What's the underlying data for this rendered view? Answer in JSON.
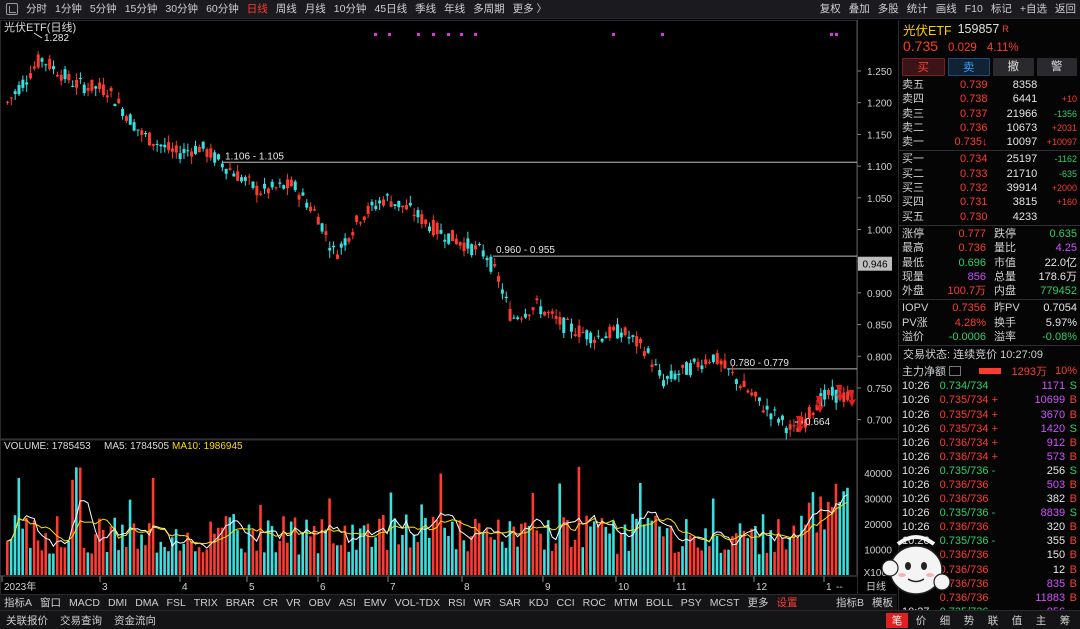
{
  "topbar": {
    "left_items": [
      "分时",
      "1分钟",
      "5分钟",
      "15分钟",
      "30分钟",
      "60分钟",
      "日线",
      "周线",
      "月线",
      "10分钟",
      "45日线",
      "季线",
      "年线",
      "多周期",
      "更多 〉"
    ],
    "active_index": 6,
    "right_items": [
      "复权",
      "叠加",
      "多股",
      "统计",
      "画线",
      "F10",
      "标记",
      "+自选",
      "返回"
    ]
  },
  "chart": {
    "title": "光伏ETF(日线)",
    "high_label": "1.282",
    "low_label": "0.664",
    "price_axis": [
      "1.250",
      "1.200",
      "1.150",
      "1.100",
      "1.050",
      "1.000",
      "0.950",
      "0.900",
      "0.850",
      "0.800",
      "0.750",
      "0.700"
    ],
    "current_marker": "0.946",
    "lines": [
      {
        "label": "1.106 - 1.105",
        "price": 1.106
      },
      {
        "label": "0.960 - 0.955",
        "price": 0.958
      },
      {
        "label": "0.780 - 0.779",
        "price": 0.78
      }
    ],
    "volume_legend": {
      "volume": "VOLUME: 1785453",
      "ma5": "MA5: 1784505",
      "ma10": "MA10: 1986945"
    },
    "volume_axis": [
      "40000",
      "30000",
      "20000",
      "10000"
    ],
    "volume_unit": "X100",
    "x_labels": [
      "2023年",
      "3",
      "4",
      "5",
      "6",
      "7",
      "8",
      "9",
      "10",
      "11",
      "12",
      "1"
    ],
    "period_btn": "日线",
    "more_btn": "--"
  },
  "bottom_tabs": {
    "left": [
      "指标A",
      "窗口",
      "MACD",
      "DMI",
      "DMA",
      "FSL",
      "TRIX",
      "BRAR",
      "CR",
      "VR",
      "OBV",
      "ASI",
      "EMV",
      "VOL-TDX",
      "RSI",
      "WR",
      "SAR",
      "KDJ",
      "CCI",
      "ROC",
      "MTM",
      "BOLL",
      "PSY",
      "MCST",
      "更多",
      "设置"
    ],
    "right": [
      "指标B",
      "模板"
    ]
  },
  "status_bar": {
    "left": [
      "关联报价",
      "交易查询",
      "资金流向"
    ],
    "right": [
      "笔",
      "价",
      "细",
      "势",
      "联",
      "值",
      "主",
      "筹"
    ],
    "active_index": 0
  },
  "quote": {
    "name": "光伏ETF",
    "code": "159857",
    "tag": "R",
    "price": "0.735",
    "change": "0.029",
    "pct": "4.11%",
    "btn_buy": "买",
    "btn_sell": "卖",
    "btn_cancel": "撤",
    "btn_alert": "警",
    "asks": [
      {
        "label": "卖五",
        "price": "0.739",
        "vol": "8358",
        "delta": ""
      },
      {
        "label": "卖四",
        "price": "0.738",
        "vol": "6441",
        "delta": "+10"
      },
      {
        "label": "卖三",
        "price": "0.737",
        "vol": "21966",
        "delta": "-1356"
      },
      {
        "label": "卖二",
        "price": "0.736",
        "vol": "10673",
        "delta": "+2031"
      },
      {
        "label": "卖一",
        "price": "0.735↓",
        "vol": "10097",
        "delta": "+10097"
      }
    ],
    "bids": [
      {
        "label": "买一",
        "price": "0.734",
        "vol": "25197",
        "delta": "-1162"
      },
      {
        "label": "买二",
        "price": "0.733",
        "vol": "21710",
        "delta": "-635"
      },
      {
        "label": "买三",
        "price": "0.732",
        "vol": "39914",
        "delta": "+2000"
      },
      {
        "label": "买四",
        "price": "0.731",
        "vol": "3815",
        "delta": "+160"
      },
      {
        "label": "买五",
        "price": "0.730",
        "vol": "4233",
        "delta": ""
      }
    ],
    "stats": [
      {
        "l1": "涨停",
        "v1": "0.777",
        "c1": "red",
        "l2": "跌停",
        "v2": "0.635",
        "c2": "green"
      },
      {
        "l1": "最高",
        "v1": "0.736",
        "c1": "red",
        "l2": "量比",
        "v2": "4.25",
        "c2": "mag"
      },
      {
        "l1": "最低",
        "v1": "0.696",
        "c1": "green",
        "l2": "市值",
        "v2": "22.0亿",
        "c2": "white"
      },
      {
        "l1": "现量",
        "v1": "856",
        "c1": "mag",
        "l2": "总量",
        "v2": "178.6万",
        "c2": "white"
      },
      {
        "l1": "外盘",
        "v1": "100.7万",
        "c1": "red",
        "l2": "内盘",
        "v2": "779452",
        "c2": "green"
      }
    ],
    "stats2": [
      {
        "l1": "IOPV",
        "v1": "0.7356",
        "c1": "red",
        "l2": "昨PV",
        "v2": "0.7054",
        "c2": "white"
      },
      {
        "l1": "PV涨",
        "v1": "4.28%",
        "c1": "red",
        "l2": "换手",
        "v2": "5.97%",
        "c2": "white"
      },
      {
        "l1": "溢价",
        "v1": "-0.0006",
        "c1": "green",
        "l2": "溢率",
        "v2": "-0.08%",
        "c2": "green"
      }
    ],
    "trade_state": "交易状态: 连续竞价 10:27:09",
    "main_flow": {
      "label": "主力净额",
      "value": "1293万",
      "pct": "10%"
    },
    "ticks": [
      {
        "t": "10:26",
        "p": "0.734/734",
        "pc": "green",
        "v": "1171",
        "vc": "mag",
        "s": "S",
        "sc": "green"
      },
      {
        "t": "10:26",
        "p": "0.735/734 +",
        "pc": "red",
        "v": "10699",
        "vc": "mag",
        "s": "B",
        "sc": "red"
      },
      {
        "t": "10:26",
        "p": "0.735/734 +",
        "pc": "red",
        "v": "3670",
        "vc": "mag",
        "s": "B",
        "sc": "red"
      },
      {
        "t": "10:26",
        "p": "0.735/734 +",
        "pc": "red",
        "v": "1420",
        "vc": "mag",
        "s": "S",
        "sc": "green"
      },
      {
        "t": "10:26",
        "p": "0.736/734 +",
        "pc": "red",
        "v": "912",
        "vc": "mag",
        "s": "B",
        "sc": "red"
      },
      {
        "t": "10:26",
        "p": "0.736/734 +",
        "pc": "red",
        "v": "573",
        "vc": "mag",
        "s": "B",
        "sc": "red"
      },
      {
        "t": "10:26",
        "p": "0.735/736 -",
        "pc": "green",
        "v": "256",
        "vc": "white",
        "s": "S",
        "sc": "green"
      },
      {
        "t": "10:26",
        "p": "0.736/736",
        "pc": "red",
        "v": "503",
        "vc": "mag",
        "s": "B",
        "sc": "red"
      },
      {
        "t": "10:26",
        "p": "0.736/736",
        "pc": "red",
        "v": "382",
        "vc": "white",
        "s": "B",
        "sc": "red"
      },
      {
        "t": "10:26",
        "p": "0.735/736 -",
        "pc": "green",
        "v": "8839",
        "vc": "mag",
        "s": "S",
        "sc": "green"
      },
      {
        "t": "10:26",
        "p": "0.736/736",
        "pc": "red",
        "v": "320",
        "vc": "white",
        "s": "B",
        "sc": "red"
      },
      {
        "t": "10:26",
        "p": "0.735/736 -",
        "pc": "green",
        "v": "355",
        "vc": "white",
        "s": "B",
        "sc": "red"
      },
      {
        "t": "10:26",
        "p": "0.736/736",
        "pc": "red",
        "v": "150",
        "vc": "white",
        "s": "B",
        "sc": "red"
      },
      {
        "t": "",
        "p": "0.736/736",
        "pc": "red",
        "v": "12",
        "vc": "white",
        "s": "B",
        "sc": "red"
      },
      {
        "t": "",
        "p": "0.736/736",
        "pc": "red",
        "v": "835",
        "vc": "mag",
        "s": "B",
        "sc": "red"
      },
      {
        "t": "",
        "p": "0.736/736",
        "pc": "red",
        "v": "11883",
        "vc": "mag",
        "s": "B",
        "sc": "red"
      },
      {
        "t": "10:27",
        "p": "0.735/736 -",
        "pc": "green",
        "v": "856",
        "vc": "mag",
        "s": "",
        "sc": "green"
      }
    ]
  },
  "icons": {
    "topbar": "chart-config-icon",
    "flow": "bar-toggle-icon",
    "sticker": "cartoon-sticker-icon"
  },
  "colors": {
    "up": "#ff3b30",
    "down": "#39e0e0",
    "ma5": "#ffffff",
    "ma10": "#ffdd00",
    "mark": "#e030e0"
  }
}
